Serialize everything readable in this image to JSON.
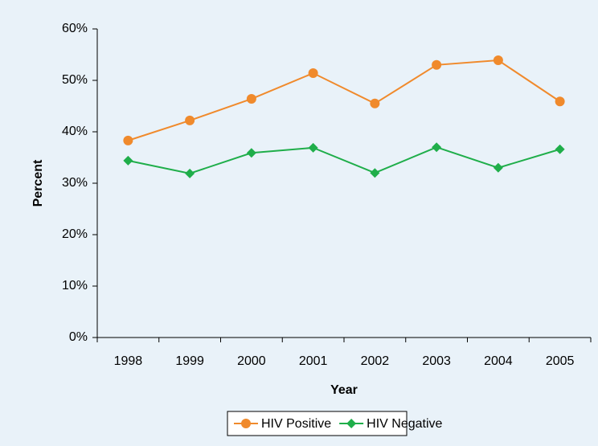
{
  "chart_data": {
    "type": "line",
    "categories": [
      "1998",
      "1999",
      "2000",
      "2001",
      "2002",
      "2003",
      "2004",
      "2005"
    ],
    "series": [
      {
        "name": "HIV Positive",
        "color": "#f08a2c",
        "marker": "circle",
        "values": [
          38.3,
          42.2,
          46.4,
          51.4,
          45.5,
          53.0,
          53.9,
          45.9
        ]
      },
      {
        "name": "HIV Negative",
        "color": "#1fae4a",
        "marker": "diamond",
        "values": [
          34.4,
          31.9,
          35.9,
          36.9,
          32.0,
          37.0,
          33.0,
          36.6
        ]
      }
    ],
    "ylim": [
      0,
      60
    ],
    "yticks": [
      {
        "value": 0,
        "label": "0%"
      },
      {
        "value": 10,
        "label": "10%"
      },
      {
        "value": 20,
        "label": "20%"
      },
      {
        "value": 30,
        "label": "30%"
      },
      {
        "value": 40,
        "label": "40%"
      },
      {
        "value": 50,
        "label": "50%"
      },
      {
        "value": 60,
        "label": "60%"
      }
    ],
    "xlabel": "Year",
    "ylabel": "Percent",
    "legend": "bottom"
  }
}
